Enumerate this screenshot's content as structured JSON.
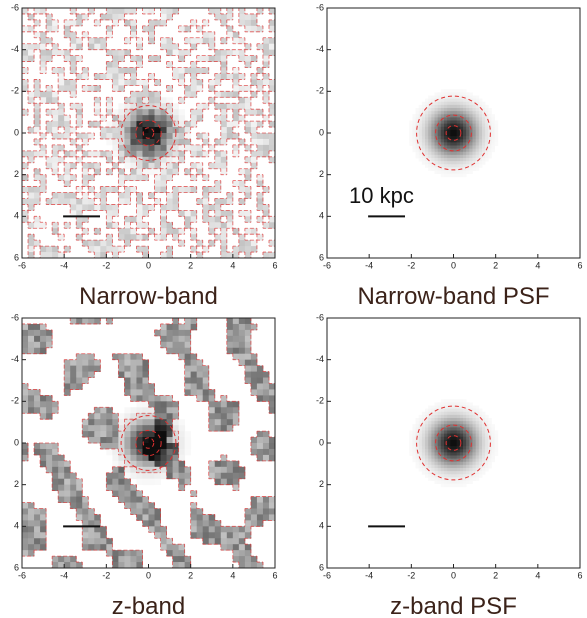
{
  "chart_data": [
    {
      "type": "image",
      "title": "Narrow-band",
      "xlim": [
        -6,
        6
      ],
      "ylim": [
        -6,
        6
      ],
      "invert_y": true,
      "xticks": [
        -6,
        -4,
        -2,
        0,
        2,
        4,
        6
      ],
      "yticks": [
        -6,
        -4,
        -2,
        0,
        2,
        4,
        6
      ]
    },
    {
      "type": "image",
      "title": "Narrow-band PSF",
      "annotation": "10 kpc",
      "xlim": [
        -6,
        6
      ],
      "ylim": [
        -6,
        6
      ],
      "invert_y": true,
      "xticks": [
        -6,
        -4,
        -2,
        0,
        2,
        4,
        6
      ],
      "yticks": [
        -6,
        -4,
        -2,
        0,
        2,
        4,
        6
      ]
    },
    {
      "type": "image",
      "title": "z-band",
      "xlim": [
        -6,
        6
      ],
      "ylim": [
        -6,
        6
      ],
      "invert_y": true,
      "xticks": [
        -6,
        -4,
        -2,
        0,
        2,
        4,
        6
      ],
      "yticks": [
        -6,
        -4,
        -2,
        0,
        2,
        4,
        6
      ]
    },
    {
      "type": "image",
      "title": "z-band PSF",
      "xlim": [
        -6,
        6
      ],
      "ylim": [
        -6,
        6
      ],
      "invert_y": true,
      "xticks": [
        -6,
        -4,
        -2,
        0,
        2,
        4,
        6
      ],
      "yticks": [
        -6,
        -4,
        -2,
        0,
        2,
        4,
        6
      ]
    }
  ]
}
